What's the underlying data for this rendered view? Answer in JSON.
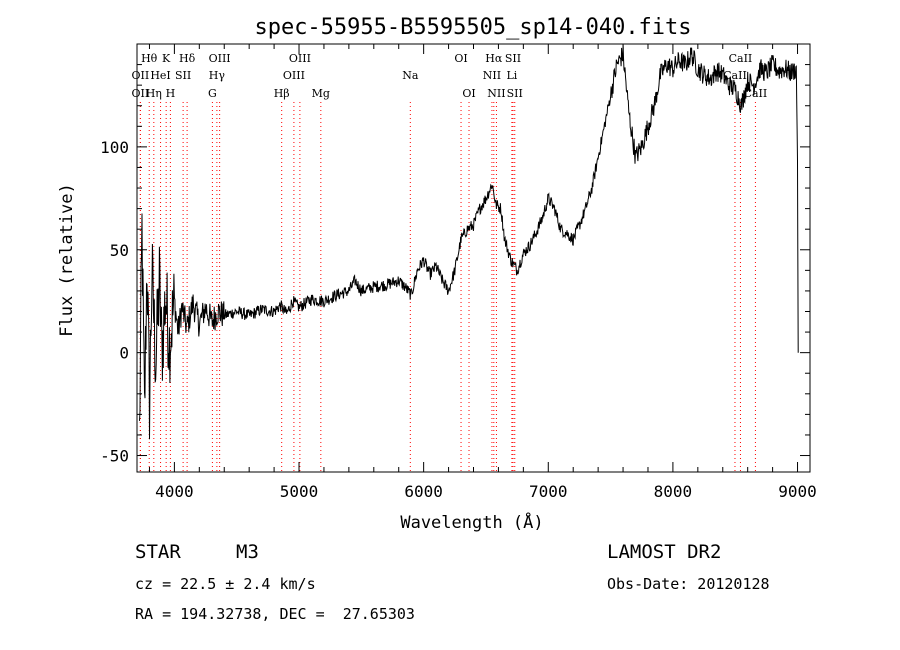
{
  "chart_data": {
    "type": "line",
    "title": "spec-55955-B5595505_sp14-040.fits",
    "xlabel": "Wavelength (Å)",
    "ylabel": "Flux (relative)",
    "xlim": [
      3700,
      9100
    ],
    "ylim": [
      -58,
      150
    ],
    "x_ticks": [
      4000,
      5000,
      6000,
      7000,
      8000,
      9000
    ],
    "y_ticks": [
      -50,
      0,
      50,
      100
    ],
    "grid": false,
    "legend": "none",
    "line_color": "#000000",
    "marker_color": "#ff0000",
    "series": [
      {
        "points": [
          [
            3720,
            -40
          ],
          [
            3740,
            60
          ],
          [
            3760,
            -30
          ],
          [
            3780,
            45
          ],
          [
            3800,
            -25
          ],
          [
            3820,
            40
          ],
          [
            3850,
            -5
          ],
          [
            3880,
            35
          ],
          [
            3900,
            0
          ],
          [
            3930,
            28
          ],
          [
            3960,
            5
          ],
          [
            4000,
            25
          ],
          [
            4030,
            10
          ],
          [
            4060,
            22
          ],
          [
            4100,
            12
          ],
          [
            4150,
            24
          ],
          [
            4200,
            14
          ],
          [
            4250,
            22
          ],
          [
            4300,
            15
          ],
          [
            4350,
            20
          ],
          [
            4400,
            18
          ],
          [
            4500,
            20
          ],
          [
            4600,
            18
          ],
          [
            4700,
            21
          ],
          [
            4800,
            20
          ],
          [
            4850,
            23
          ],
          [
            4900,
            19
          ],
          [
            4950,
            25
          ],
          [
            5000,
            22
          ],
          [
            5100,
            26
          ],
          [
            5200,
            25
          ],
          [
            5300,
            28
          ],
          [
            5400,
            30
          ],
          [
            5450,
            35
          ],
          [
            5500,
            30
          ],
          [
            5600,
            32
          ],
          [
            5700,
            33
          ],
          [
            5800,
            35
          ],
          [
            5850,
            32
          ],
          [
            5900,
            28
          ],
          [
            5950,
            40
          ],
          [
            6000,
            45
          ],
          [
            6050,
            38
          ],
          [
            6100,
            42
          ],
          [
            6150,
            35
          ],
          [
            6200,
            30
          ],
          [
            6250,
            40
          ],
          [
            6300,
            55
          ],
          [
            6350,
            60
          ],
          [
            6400,
            62
          ],
          [
            6450,
            70
          ],
          [
            6500,
            75
          ],
          [
            6550,
            82
          ],
          [
            6580,
            72
          ],
          [
            6620,
            70
          ],
          [
            6650,
            55
          ],
          [
            6700,
            45
          ],
          [
            6750,
            40
          ],
          [
            6800,
            48
          ],
          [
            6850,
            52
          ],
          [
            6900,
            58
          ],
          [
            6950,
            65
          ],
          [
            7000,
            75
          ],
          [
            7050,
            70
          ],
          [
            7100,
            60
          ],
          [
            7150,
            58
          ],
          [
            7200,
            55
          ],
          [
            7250,
            62
          ],
          [
            7300,
            70
          ],
          [
            7350,
            80
          ],
          [
            7400,
            95
          ],
          [
            7450,
            110
          ],
          [
            7500,
            125
          ],
          [
            7550,
            140
          ],
          [
            7600,
            145
          ],
          [
            7650,
            115
          ],
          [
            7700,
            95
          ],
          [
            7750,
            100
          ],
          [
            7800,
            110
          ],
          [
            7850,
            120
          ],
          [
            7900,
            135
          ],
          [
            7950,
            140
          ],
          [
            8000,
            138
          ],
          [
            8050,
            142
          ],
          [
            8100,
            140
          ],
          [
            8150,
            145
          ],
          [
            8200,
            138
          ],
          [
            8250,
            135
          ],
          [
            8300,
            133
          ],
          [
            8350,
            137
          ],
          [
            8400,
            135
          ],
          [
            8450,
            130
          ],
          [
            8500,
            128
          ],
          [
            8550,
            120
          ],
          [
            8600,
            132
          ],
          [
            8650,
            130
          ],
          [
            8700,
            138
          ],
          [
            8750,
            136
          ],
          [
            8800,
            140
          ],
          [
            8850,
            137
          ],
          [
            8900,
            138
          ],
          [
            8950,
            136
          ],
          [
            8990,
            138
          ],
          [
            9000,
            95
          ],
          [
            9005,
            0
          ]
        ]
      }
    ],
    "line_markers": [
      {
        "name": "Hθ",
        "x": 3798,
        "row": 0
      },
      {
        "name": "K",
        "x": 3934,
        "row": 0
      },
      {
        "name": "Hδ",
        "x": 4102,
        "row": 0
      },
      {
        "name": "OIII",
        "x": 4363,
        "row": 0
      },
      {
        "name": "OIII",
        "x": 5007,
        "row": 0
      },
      {
        "name": "OI",
        "x": 6300,
        "row": 0
      },
      {
        "name": "Hα",
        "x": 6563,
        "row": 0
      },
      {
        "name": "SII",
        "x": 6717,
        "row": 0
      },
      {
        "name": "CaII",
        "x": 8542,
        "row": 0
      },
      {
        "name": "OII",
        "x": 3727,
        "row": 1
      },
      {
        "name": "HeI",
        "x": 3889,
        "row": 1
      },
      {
        "name": "SII",
        "x": 4070,
        "row": 1
      },
      {
        "name": "Hγ",
        "x": 4341,
        "row": 1
      },
      {
        "name": "OIII",
        "x": 4959,
        "row": 1
      },
      {
        "name": "Na",
        "x": 5893,
        "row": 1
      },
      {
        "name": "NII",
        "x": 6548,
        "row": 1
      },
      {
        "name": "Li",
        "x": 6708,
        "row": 1
      },
      {
        "name": "CaII",
        "x": 8498,
        "row": 1
      },
      {
        "name": "OII",
        "x": 3727,
        "row": 2
      },
      {
        "name": "Hη",
        "x": 3835,
        "row": 2
      },
      {
        "name": "H",
        "x": 3968,
        "row": 2
      },
      {
        "name": "G",
        "x": 4305,
        "row": 2
      },
      {
        "name": "Hβ",
        "x": 4861,
        "row": 2
      },
      {
        "name": "Mg",
        "x": 5175,
        "row": 2
      },
      {
        "name": "OI",
        "x": 6364,
        "row": 2
      },
      {
        "name": "NII",
        "x": 6584,
        "row": 2
      },
      {
        "name": "SII",
        "x": 6731,
        "row": 2
      },
      {
        "name": "CaII",
        "x": 8662,
        "row": 2
      }
    ]
  },
  "info": {
    "object_type": "STAR",
    "subclass": "M3",
    "survey": "LAMOST DR2",
    "cz": "cz = 22.5 ± 2.4 km/s",
    "obs_date": "Obs-Date: 20120128",
    "coords": "RA = 194.32738, DEC =  27.65303"
  }
}
